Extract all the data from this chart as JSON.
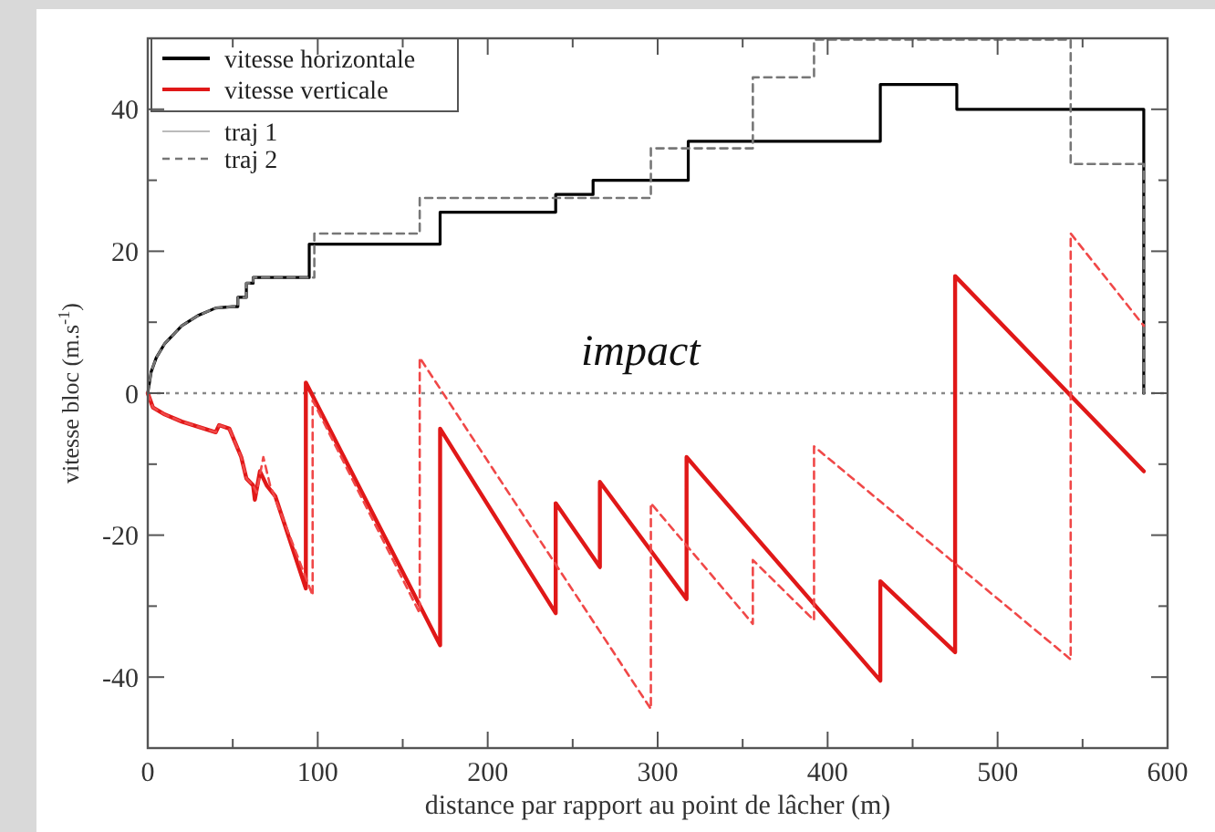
{
  "chart_data": {
    "type": "line",
    "xlabel": "distance par rapport au point de lâcher (m)",
    "ylabel": "vitesse bloc (m.s$^{-1}$)",
    "xlim": [
      0,
      600
    ],
    "ylim": [
      -50,
      50
    ],
    "xticks": [
      0,
      {
        "value": 50,
        "label": null
      },
      100,
      {
        "value": 150,
        "label": null
      },
      200,
      {
        "value": 250,
        "label": null
      },
      300,
      {
        "value": 350,
        "label": null
      },
      400,
      {
        "value": 450,
        "label": null
      },
      500,
      {
        "value": 550,
        "label": null
      },
      600
    ],
    "yticks": [
      {
        "value": -50,
        "label": null
      },
      -40,
      {
        "value": -30,
        "label": null
      },
      -20,
      {
        "value": -10,
        "label": null
      },
      0,
      {
        "value": 10,
        "label": null
      },
      20,
      {
        "value": 30,
        "label": null
      },
      40,
      {
        "value": 50,
        "label": null
      }
    ],
    "grid": false,
    "legend": "top left",
    "marker": "none",
    "ref_lines": [
      {
        "axis": "y",
        "value": 0,
        "color": "#888888",
        "line_style": "dotted"
      }
    ],
    "annotations": [
      "impact",
      "traj 1"
    ],
    "series": [
      {
        "name": "vitesse horizontale",
        "color": "#000000",
        "line_style": "solid",
        "x": [
          0,
          2,
          5,
          10,
          20,
          30,
          40,
          50,
          53,
          53,
          58,
          58,
          62,
          62,
          95,
          95,
          172,
          172,
          240,
          240,
          262,
          262,
          318,
          318,
          431,
          431,
          476,
          476,
          586,
          586
        ],
        "values": [
          0,
          3,
          5,
          7,
          9.5,
          11,
          12,
          12.2,
          12.2,
          13.5,
          13.5,
          15.5,
          15.5,
          16.3,
          16.3,
          21,
          21,
          25.5,
          25.5,
          28,
          28,
          30,
          30,
          35.5,
          35.5,
          43.5,
          43.5,
          40,
          40,
          0
        ]
      },
      {
        "name": "vitesse verticale",
        "color": "#e01818",
        "line_style": "solid",
        "x": [
          0,
          3,
          10,
          20,
          40,
          42,
          48,
          55,
          58,
          62,
          63,
          66,
          70,
          75,
          93,
          93,
          172,
          172,
          240,
          240,
          266,
          266,
          317,
          317,
          431,
          431,
          475,
          475,
          586
        ],
        "values": [
          0,
          -2,
          -3,
          -4,
          -5.5,
          -4.5,
          -5,
          -9,
          -12,
          -13,
          -15,
          -11,
          -13,
          -14.5,
          -27.5,
          1.5,
          -35.5,
          -5,
          -31,
          -15.5,
          -24.5,
          -12.5,
          -29,
          -9,
          -40.5,
          -26.5,
          -36.5,
          16.5,
          -11
        ]
      },
      {
        "name": "traj 2",
        "color": "#777777",
        "line_style": "dashed",
        "x": [
          0,
          2,
          5,
          10,
          20,
          30,
          40,
          50,
          53,
          53,
          58,
          58,
          62,
          62,
          98,
          98,
          160,
          160,
          296,
          296,
          356,
          356,
          392,
          392,
          543,
          543,
          586,
          586
        ],
        "values": [
          0,
          3,
          5,
          7,
          9.5,
          11,
          12,
          12.2,
          12.2,
          13.5,
          13.5,
          15.5,
          15.5,
          16.3,
          16.3,
          22.5,
          22.5,
          27.5,
          27.5,
          34.5,
          34.5,
          44.5,
          44.5,
          49.8,
          49.8,
          32.3,
          32.3,
          0
        ]
      },
      {
        "color": "#f04848",
        "line_style": "dashed",
        "x": [
          0,
          3,
          10,
          20,
          40,
          42,
          48,
          55,
          58,
          62,
          64,
          68,
          72,
          97,
          97,
          160,
          160,
          296,
          296,
          356,
          356,
          392,
          392,
          543,
          543,
          586
        ],
        "values": [
          0,
          -2,
          -3,
          -4,
          -5.5,
          -4.5,
          -5,
          -9,
          -12,
          -13,
          -14,
          -9,
          -13,
          -28.5,
          -1,
          -31,
          5,
          -44.5,
          -15.5,
          -32.5,
          -23.5,
          -32,
          -7.5,
          -37.5,
          22.5,
          9.5
        ]
      }
    ]
  }
}
